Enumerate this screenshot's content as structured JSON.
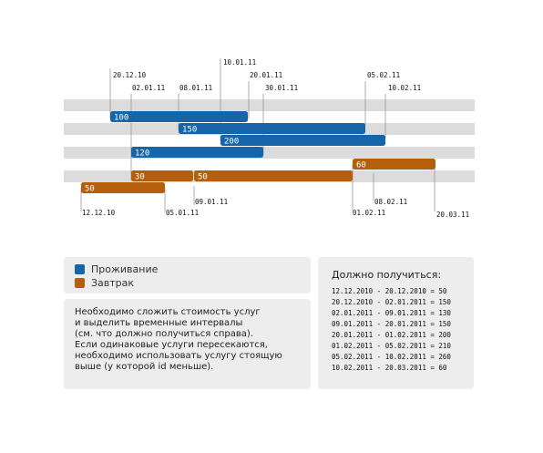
{
  "colors": {
    "accommodation": "#1565a8",
    "breakfast": "#b55e0c",
    "row_stripe": "#dcdcdc",
    "panel_bg": "#ededed",
    "guide": "#999999"
  },
  "timeline": {
    "intervals": [
      {
        "service": "accommodation",
        "label": "100",
        "start": "20.12.10",
        "end": "10.01.11",
        "row": 1
      },
      {
        "service": "accommodation",
        "label": "150",
        "start": "02.01.11",
        "end": "05.02.11",
        "row": 2
      },
      {
        "service": "accommodation",
        "label": "200",
        "start": "20.01.11",
        "end": "10.02.11",
        "row": 3
      },
      {
        "service": "accommodation",
        "label": "120",
        "start": "09.01.11",
        "end": "30.01.11",
        "row": 4
      },
      {
        "service": "breakfast",
        "label": "60",
        "start": "01.02.11",
        "end": "20.03.11",
        "row": 5
      },
      {
        "service": "breakfast",
        "label": "30",
        "start": "09.01.11",
        "end": "05.01.11",
        "row": 6
      },
      {
        "service": "breakfast",
        "label": "50",
        "start": "05.01.11",
        "end": "08.02.11",
        "row": 6
      },
      {
        "service": "breakfast",
        "label": "50",
        "start": "12.12.10",
        "end": "05.01.11",
        "row": 7
      }
    ],
    "top_dates": [
      {
        "text": "10.01.11"
      },
      {
        "text": "20.12.10"
      },
      {
        "text": "20.01.11"
      },
      {
        "text": "05.02.11"
      },
      {
        "text": "02.01.11"
      },
      {
        "text": "08.01.11"
      },
      {
        "text": "30.01.11"
      },
      {
        "text": "10.02.11"
      }
    ],
    "bottom_dates": [
      {
        "text": "09.01.11"
      },
      {
        "text": "08.02.11"
      },
      {
        "text": "12.12.10"
      },
      {
        "text": "05.01.11"
      },
      {
        "text": "01.02.11"
      },
      {
        "text": "20.03.11"
      }
    ]
  },
  "legend": {
    "items": [
      {
        "label": "Проживание",
        "color": "#1565a8"
      },
      {
        "label": "Завтрак",
        "color": "#b55e0c"
      }
    ]
  },
  "description": {
    "lines": [
      "Необходимо сложить стоимость услуг",
      "и выделить временные интервалы",
      "(см. что должно получиться справа).",
      "Если одинаковые услуги пересекаются,",
      "необходимо использовать услугу стоящую",
      "выше (у которой id меньше)."
    ]
  },
  "result": {
    "title": "Должно получиться:",
    "lines": [
      "12.12.2010 - 20.12.2010 = 50",
      "20.12.2010 - 02.01.2011 = 150",
      "02.01.2011 - 09.01.2011 = 130",
      "09.01.2011 - 20.01.2011 = 150",
      "20.01.2011 - 01.02.2011 = 200",
      "01.02.2011 - 05.02.2011 = 210",
      "05.02.2011 - 10.02.2011 = 260",
      "10.02.2011 - 20.03.2011 = 60"
    ]
  }
}
